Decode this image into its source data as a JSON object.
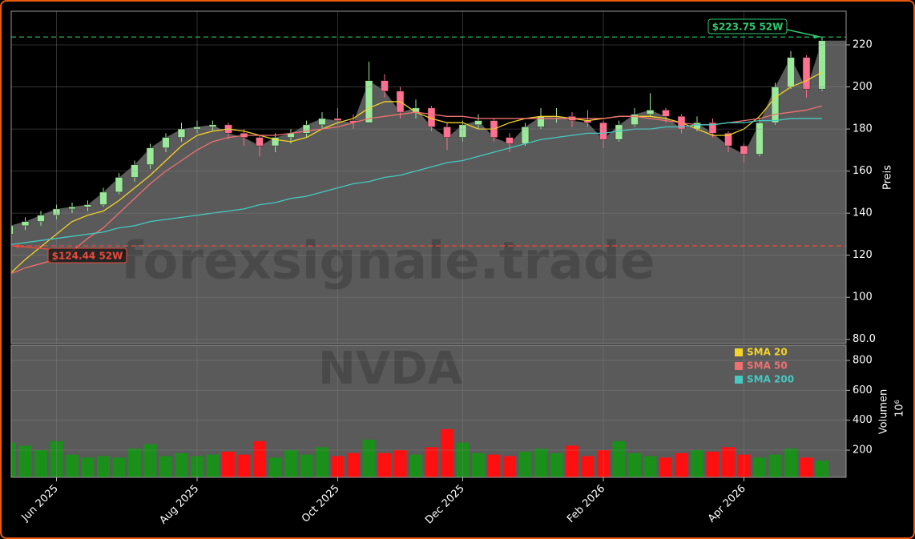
{
  "chart_data": {
    "type": "candlestick",
    "watermark": "forexsignale.trade",
    "symbol": "NVDA",
    "categories": [
      null,
      null,
      null,
      "Jun 2025",
      null,
      null,
      null,
      null,
      null,
      null,
      null,
      null,
      "Aug 2025",
      null,
      null,
      null,
      null,
      null,
      null,
      null,
      null,
      "Oct 2025",
      null,
      null,
      null,
      null,
      null,
      null,
      null,
      "Dec 2025",
      null,
      null,
      null,
      null,
      null,
      null,
      null,
      null,
      "Feb 2026",
      null,
      null,
      null,
      null,
      null,
      null,
      null,
      null,
      "Apr 2026",
      null,
      null,
      null,
      null,
      null
    ],
    "open": [
      130,
      134,
      136,
      139,
      142,
      143,
      144,
      150,
      157,
      163,
      171,
      176,
      180,
      181,
      182,
      178,
      176,
      172,
      176,
      178,
      182,
      185,
      184,
      183,
      203,
      198,
      188,
      190,
      181,
      176,
      182,
      184,
      176,
      173,
      181,
      186,
      186,
      184,
      183,
      175,
      182,
      187,
      189,
      186,
      180,
      183,
      178,
      172,
      168,
      183,
      200,
      214,
      199
    ],
    "high": [
      136,
      138,
      141,
      144,
      145,
      146,
      152,
      159,
      165,
      173,
      178,
      183,
      184,
      184,
      183,
      180,
      177,
      178,
      180,
      184,
      188,
      190,
      187,
      212,
      206,
      200,
      194,
      191,
      183,
      184,
      187,
      185,
      178,
      183,
      190,
      190,
      188,
      189,
      184,
      184,
      190,
      197,
      190,
      187,
      186,
      185,
      179,
      173,
      185,
      202,
      217,
      215,
      223.75
    ],
    "low": [
      124.44,
      132,
      134,
      137,
      140,
      141,
      143,
      149,
      155,
      161,
      169,
      174,
      178,
      179,
      175,
      172,
      167,
      169,
      173,
      176,
      180,
      182,
      180,
      183,
      195,
      185,
      185,
      179,
      170,
      174,
      180,
      174,
      169,
      172,
      180,
      183,
      181,
      181,
      171,
      174,
      181,
      186,
      183,
      178,
      179,
      176,
      169,
      164,
      167,
      182,
      199,
      195,
      198
    ],
    "close": [
      134,
      136,
      139,
      142,
      143,
      144,
      150,
      157,
      163,
      171,
      176,
      180,
      181,
      182,
      178,
      176,
      172,
      176,
      178,
      182,
      185,
      184,
      183,
      203,
      198,
      188,
      190,
      181,
      176,
      182,
      184,
      176,
      173,
      181,
      186,
      186,
      184,
      183,
      175,
      182,
      187,
      189,
      186,
      180,
      183,
      178,
      172,
      168,
      183,
      200,
      214,
      199,
      222
    ],
    "up_color": "#9be89b",
    "down_color": "#ff6f8f",
    "area_color": "#5a5a5a",
    "ylim": [
      78,
      236
    ],
    "yticks": [
      {
        "value": 80,
        "label": "80.0"
      },
      100,
      120,
      140,
      160,
      180,
      200,
      220
    ],
    "ylabel": "Preis",
    "grid": true,
    "legend": "upper right",
    "lines": [
      {
        "name": "SMA 20",
        "color": "#f5d327",
        "values": [
          111,
          118,
          124,
          130,
          136,
          139,
          141,
          146,
          152,
          158,
          165,
          172,
          177,
          179,
          180,
          179,
          177,
          175,
          174,
          176,
          180,
          183,
          185,
          190,
          193,
          193,
          188,
          185,
          183,
          183,
          180,
          180,
          183,
          185,
          186,
          186,
          185,
          184,
          185,
          186,
          186,
          186,
          185,
          183,
          180,
          177,
          177,
          180,
          186,
          195,
          200,
          203,
          207
        ]
      },
      {
        "name": "SMA 50",
        "color": "#f07070",
        "values": [
          111,
          114,
          116,
          118,
          122,
          128,
          133,
          140,
          147,
          154,
          160,
          165,
          170,
          174,
          176,
          177,
          177,
          177,
          178,
          179,
          180,
          181,
          183,
          185,
          186,
          187,
          188,
          187,
          186,
          186,
          185,
          185,
          185,
          185,
          185,
          185,
          185,
          185,
          185,
          186,
          186,
          185,
          184,
          183,
          182,
          182,
          183,
          184,
          185,
          187,
          188,
          189,
          191
        ]
      },
      {
        "name": "SMA 200",
        "color": "#45c9c1",
        "values": [
          125,
          126,
          127,
          128,
          129,
          130,
          131,
          133,
          134,
          136,
          137,
          138,
          139,
          140,
          141,
          142,
          144,
          145,
          147,
          148,
          150,
          152,
          154,
          155,
          157,
          158,
          160,
          162,
          164,
          165,
          167,
          169,
          171,
          173,
          175,
          176,
          177,
          178,
          178,
          179,
          180,
          180,
          181,
          181,
          182,
          182,
          183,
          183,
          184,
          184,
          185,
          185,
          185
        ]
      }
    ],
    "levels": [
      {
        "label": "$223.75 52W",
        "value": 223.75,
        "color": "#2ecc71"
      },
      {
        "label": "$124.44 52W",
        "value": 124.44,
        "color": "#e74c3c"
      }
    ],
    "volume": {
      "values": [
        250,
        230,
        200,
        260,
        170,
        150,
        160,
        150,
        210,
        240,
        160,
        180,
        160,
        170,
        190,
        170,
        260,
        150,
        200,
        170,
        220,
        160,
        180,
        270,
        180,
        200,
        170,
        220,
        340,
        250,
        180,
        170,
        160,
        190,
        210,
        180,
        230,
        160,
        200,
        260,
        180,
        160,
        150,
        180,
        200,
        190,
        220,
        170,
        150,
        170,
        210,
        150,
        130
      ],
      "up_color": "#1a8f1a",
      "down_color": "#ff1010",
      "ylim": [
        18,
        902
      ],
      "yticks": [
        200,
        400,
        600,
        800
      ],
      "ylabel": "Volumen",
      "offset_label": "10⁶"
    }
  }
}
